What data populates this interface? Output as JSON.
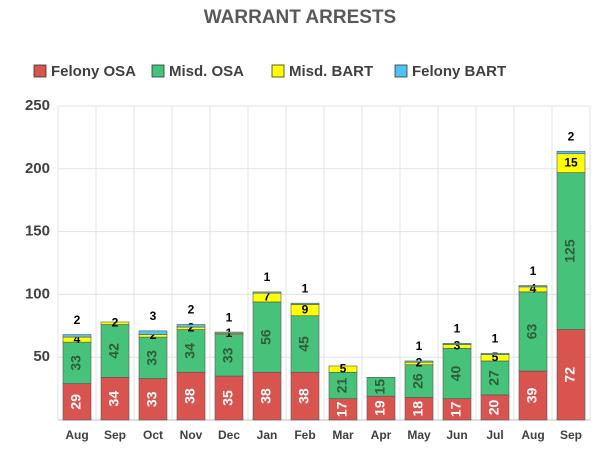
{
  "chart_data": {
    "type": "stacked_bar",
    "title": "WARRANT ARRESTS",
    "categories": [
      "Aug",
      "Sep",
      "Oct",
      "Nov",
      "Dec",
      "Jan",
      "Feb",
      "Mar",
      "Apr",
      "May",
      "Jun",
      "Jul",
      "Aug",
      "Sep"
    ],
    "series": [
      {
        "name": "Felony OSA",
        "color": "#d9534f",
        "values": [
          29,
          34,
          33,
          38,
          35,
          38,
          38,
          17,
          19,
          18,
          17,
          20,
          39,
          72
        ]
      },
      {
        "name": "Misd. OSA",
        "color": "#47c27a",
        "values": [
          33,
          42,
          33,
          34,
          33,
          56,
          45,
          21,
          15,
          26,
          40,
          27,
          63,
          125
        ]
      },
      {
        "name": "Misd. BART",
        "color": "#ffff00",
        "values": [
          4,
          2,
          2,
          2,
          1,
          7,
          9,
          5,
          null,
          2,
          3,
          5,
          4,
          15
        ]
      },
      {
        "name": "Felony BART",
        "color": "#4fc3f7",
        "values": [
          2,
          null,
          3,
          2,
          1,
          1,
          1,
          null,
          null,
          1,
          1,
          1,
          1,
          2
        ]
      }
    ],
    "ylim": [
      0,
      250
    ],
    "yticks": [
      50,
      100,
      150,
      200,
      250
    ],
    "grid": true,
    "legend": "top"
  }
}
